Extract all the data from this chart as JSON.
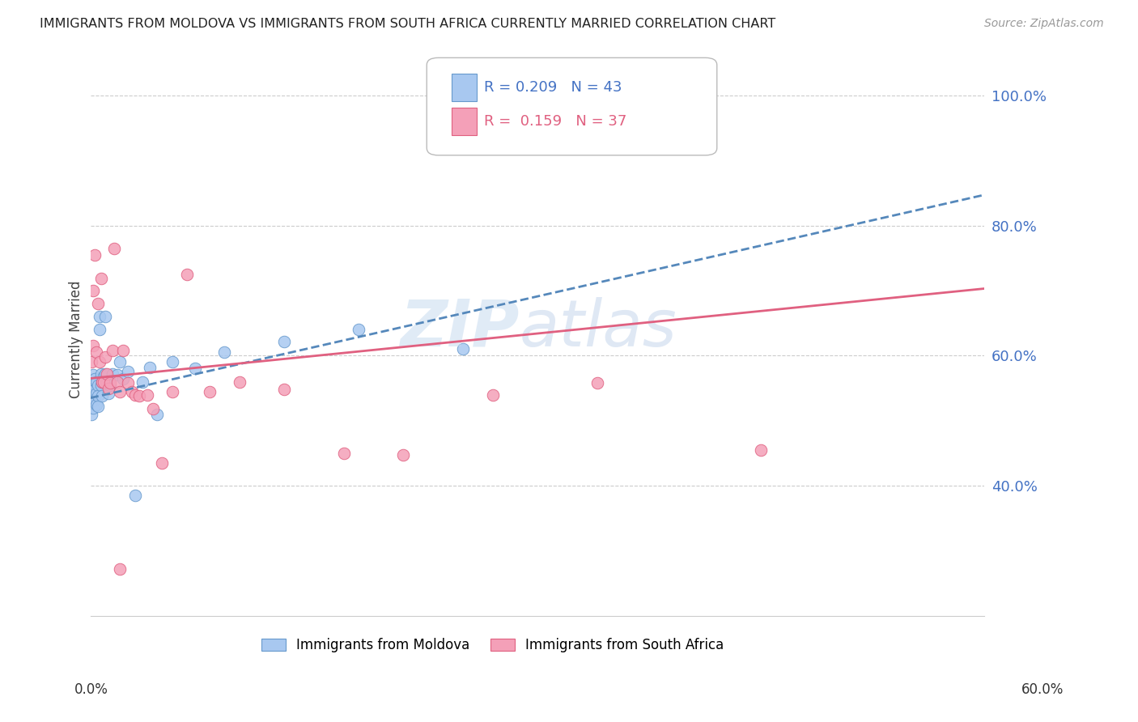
{
  "title": "IMMIGRANTS FROM MOLDOVA VS IMMIGRANTS FROM SOUTH AFRICA CURRENTLY MARRIED CORRELATION CHART",
  "source": "Source: ZipAtlas.com",
  "ylabel": "Currently Married",
  "x_range": [
    0.0,
    0.6
  ],
  "y_range": [
    0.2,
    1.05
  ],
  "moldova_color": "#a8c8f0",
  "moldova_edge": "#6699cc",
  "south_africa_color": "#f4a0b8",
  "south_africa_edge": "#e06080",
  "trend_moldova_color": "#5588bb",
  "trend_sa_color": "#e06080",
  "R_moldova": 0.209,
  "N_moldova": 43,
  "R_sa": 0.159,
  "N_sa": 37,
  "moldova_x": [
    0.001,
    0.001,
    0.001,
    0.002,
    0.002,
    0.002,
    0.002,
    0.003,
    0.003,
    0.003,
    0.004,
    0.004,
    0.004,
    0.005,
    0.005,
    0.005,
    0.006,
    0.006,
    0.007,
    0.007,
    0.008,
    0.008,
    0.009,
    0.01,
    0.01,
    0.011,
    0.012,
    0.013,
    0.015,
    0.018,
    0.02,
    0.022,
    0.025,
    0.03,
    0.035,
    0.04,
    0.045,
    0.055,
    0.07,
    0.09,
    0.13,
    0.18,
    0.25
  ],
  "moldova_y": [
    0.545,
    0.53,
    0.51,
    0.57,
    0.555,
    0.54,
    0.52,
    0.565,
    0.548,
    0.532,
    0.56,
    0.542,
    0.525,
    0.555,
    0.538,
    0.522,
    0.66,
    0.64,
    0.572,
    0.555,
    0.56,
    0.538,
    0.568,
    0.66,
    0.572,
    0.558,
    0.542,
    0.555,
    0.572,
    0.57,
    0.59,
    0.565,
    0.575,
    0.385,
    0.56,
    0.582,
    0.51,
    0.59,
    0.58,
    0.605,
    0.622,
    0.64,
    0.61
  ],
  "sa_x": [
    0.001,
    0.002,
    0.002,
    0.003,
    0.004,
    0.005,
    0.006,
    0.007,
    0.008,
    0.009,
    0.01,
    0.011,
    0.012,
    0.013,
    0.015,
    0.016,
    0.018,
    0.02,
    0.022,
    0.025,
    0.028,
    0.03,
    0.033,
    0.038,
    0.042,
    0.048,
    0.055,
    0.065,
    0.08,
    0.1,
    0.13,
    0.17,
    0.21,
    0.27,
    0.34,
    0.45,
    0.02
  ],
  "sa_y": [
    0.59,
    0.7,
    0.615,
    0.755,
    0.605,
    0.68,
    0.59,
    0.718,
    0.56,
    0.56,
    0.598,
    0.572,
    0.55,
    0.558,
    0.608,
    0.765,
    0.56,
    0.545,
    0.608,
    0.558,
    0.545,
    0.54,
    0.538,
    0.54,
    0.518,
    0.435,
    0.545,
    0.725,
    0.545,
    0.56,
    0.548,
    0.45,
    0.448,
    0.54,
    0.558,
    0.455,
    0.272
  ]
}
